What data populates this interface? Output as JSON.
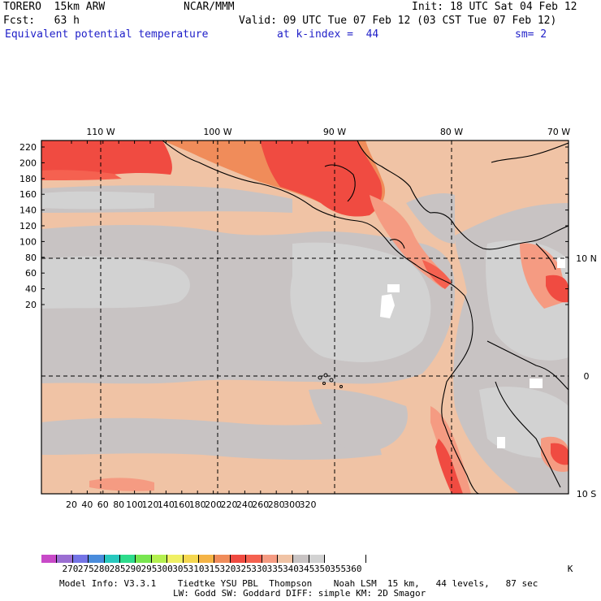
{
  "header": {
    "model": "TORERO  15km ARW",
    "center": "NCAR/MMM",
    "init": "Init: 18 UTC Sat 04 Feb 12",
    "fcst": "Fcst:   63 h",
    "valid": "Valid: 09 UTC Tue 07 Feb 12 (03 CST Tue 07 Feb 12)",
    "field": "Equivalent potential temperature",
    "level": "at k-index =  44",
    "smoothing": "sm= 2"
  },
  "map": {
    "top_lon_labels": [
      "110 W",
      "100 W",
      "90 W",
      "80 W",
      "70 W"
    ],
    "right_lat_labels": [
      "10 N",
      "0",
      "10 S"
    ],
    "y_ticks": [
      "220",
      "200",
      "180",
      "160",
      "140",
      "120",
      "100",
      "80",
      "60",
      "40",
      "20"
    ],
    "x_ticks": [
      "20",
      "40",
      "60",
      "80",
      "100",
      "120",
      "140",
      "160",
      "180",
      "200",
      "220",
      "240",
      "260",
      "280",
      "300",
      "320"
    ]
  },
  "colorbar": {
    "unit": "K",
    "labels": [
      "270",
      "275",
      "280",
      "285",
      "290",
      "295",
      "300",
      "305",
      "310",
      "315",
      "320",
      "325",
      "330",
      "335",
      "340",
      "345",
      "350",
      "355",
      "360"
    ],
    "colors": [
      "#c84ac8",
      "#9b6ed2",
      "#7474e6",
      "#4a8cdc",
      "#28c8be",
      "#2edc8c",
      "#78e650",
      "#b4f050",
      "#f0f064",
      "#f5d750",
      "#f5b446",
      "#f08c5a",
      "#f04b41",
      "#f56150",
      "#f59b82",
      "#f0c3a5",
      "#c8c3c3",
      "#d2d2d2",
      "#ffffff"
    ]
  },
  "footer": {
    "line1": "Model Info: V3.3.1    Tiedtke YSU PBL  Thompson    Noah LSM  15 km,   44 levels,   87 sec",
    "line2": "LW: Godd SW: Goddard DIFF: simple KM: 2D Smagor"
  }
}
